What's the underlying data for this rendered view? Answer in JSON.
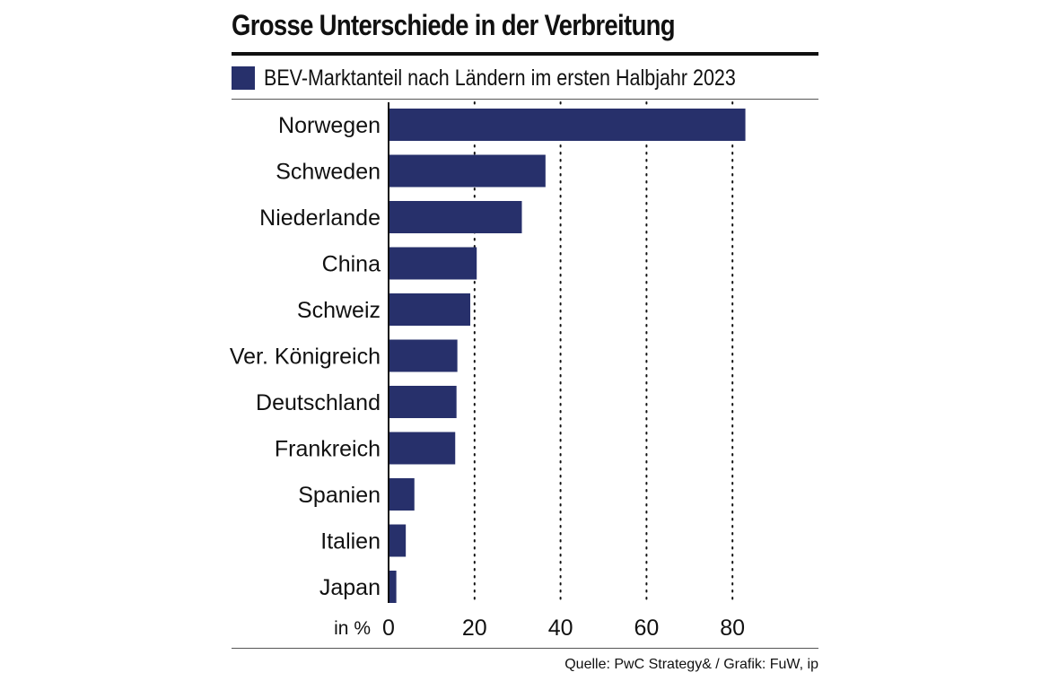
{
  "title": "Grosse Unterschiede in der Verbreitung",
  "legend_label": "BEV-Marktanteil nach Ländern im ersten Halbjahr 2023",
  "source": "Quelle: PwC Strategy& / Grafik: FuW, ip",
  "colors": {
    "bar": "#27306b",
    "text": "#111111",
    "grid": "#111111"
  },
  "chart_data": {
    "type": "bar",
    "orientation": "horizontal",
    "title": "Grosse Unterschiede in der Verbreitung",
    "series": [
      {
        "name": "BEV-Marktanteil nach Ländern im ersten Halbjahr 2023",
        "values": [
          83,
          36.5,
          31,
          20.5,
          19,
          16,
          15.8,
          15.5,
          6,
          4,
          1.8
        ]
      }
    ],
    "categories": [
      "Norwegen",
      "Schweden",
      "Niederlande",
      "China",
      "Schweiz",
      "Ver. Königreich",
      "Deutschland",
      "Frankreich",
      "Spanien",
      "Italien",
      "Japan"
    ],
    "xlim": [
      0,
      80
    ],
    "xticks": [
      0,
      20,
      40,
      60,
      80
    ],
    "xtick_labels": [
      "0",
      "20",
      "40",
      "60",
      "80"
    ],
    "xlabel": "in %",
    "grid": "vertical dotted"
  }
}
